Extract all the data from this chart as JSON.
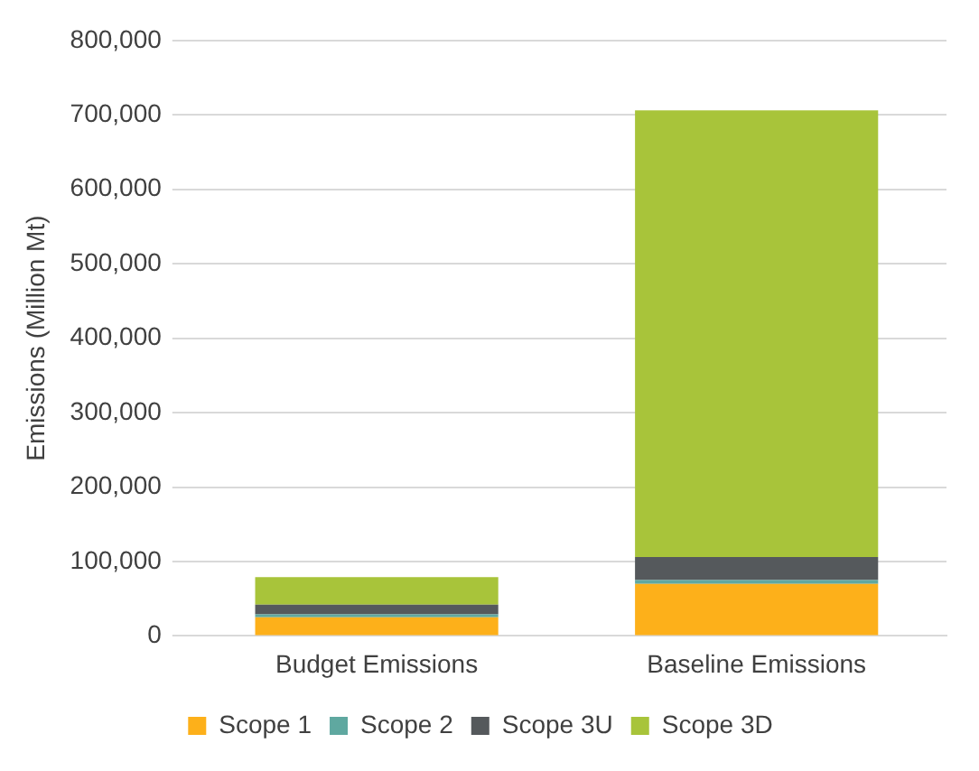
{
  "chart_data": {
    "type": "bar",
    "stacked": true,
    "ylabel": "Emissions (Million Mt)",
    "categories": [
      "Budget Emissions",
      "Baseline Emissions"
    ],
    "series": [
      {
        "name": "Scope 1",
        "color": "#fdb01a",
        "values": [
          25000,
          70000
        ]
      },
      {
        "name": "Scope 2",
        "color": "#5fa8a0",
        "values": [
          4000,
          5000
        ]
      },
      {
        "name": "Scope 3U",
        "color": "#55595c",
        "values": [
          13000,
          31000
        ]
      },
      {
        "name": "Scope 3D",
        "color": "#a8c43a",
        "values": [
          37000,
          600000
        ]
      }
    ],
    "ylim": [
      0,
      800000
    ],
    "yticks": [
      0,
      {
        "value": 100000,
        "label": "100,000"
      },
      {
        "value": 200000,
        "label": "200,000"
      },
      {
        "value": 300000,
        "label": "300,000"
      },
      {
        "value": 400000,
        "label": "400,000"
      },
      {
        "value": 500000,
        "label": "500,000"
      },
      {
        "value": 600000,
        "label": "600,000"
      },
      {
        "value": 700000,
        "label": "700,000"
      },
      {
        "value": 800000,
        "label": "800,000"
      }
    ],
    "grid": "y",
    "legend": "bottom"
  }
}
